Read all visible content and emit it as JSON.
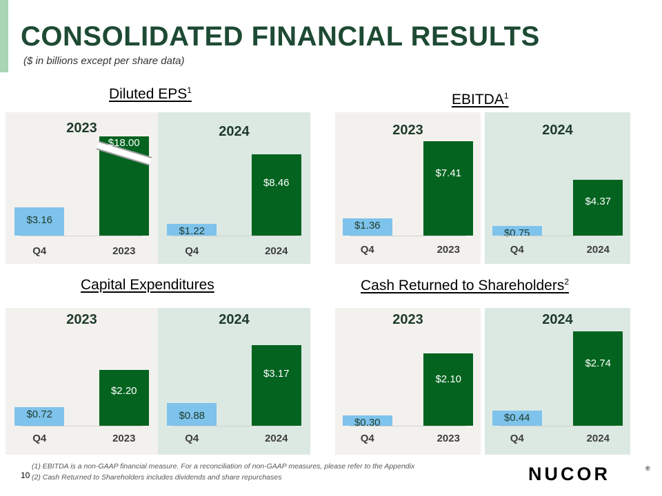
{
  "header": {
    "title": "CONSOLIDATED FINANCIAL RESULTS",
    "subtitle": "($ in billions except per share data)"
  },
  "colors": {
    "q4_bar": "#7ec3ec",
    "annual_bar": "#03631f",
    "panel_2023": "#f3f1ee",
    "panel_2024": "#dce9e2"
  },
  "chart_data": [
    {
      "type": "bar",
      "title": "Diluted EPS",
      "footnote_ref": "1",
      "series_groups": [
        {
          "group": "2023",
          "categories": [
            "Q4",
            "2023"
          ],
          "values": [
            3.16,
            18.0
          ],
          "labels": [
            "$3.16",
            "$18.00"
          ],
          "axis_break": true
        },
        {
          "group": "2024",
          "categories": [
            "Q4",
            "2024"
          ],
          "values": [
            1.22,
            8.46
          ],
          "labels": [
            "$1.22",
            "$8.46"
          ]
        }
      ]
    },
    {
      "type": "bar",
      "title": "EBITDA",
      "footnote_ref": "1",
      "series_groups": [
        {
          "group": "2023",
          "categories": [
            "Q4",
            "2023"
          ],
          "values": [
            1.36,
            7.41
          ],
          "labels": [
            "$1.36",
            "$7.41"
          ]
        },
        {
          "group": "2024",
          "categories": [
            "Q4",
            "2024"
          ],
          "values": [
            0.75,
            4.37
          ],
          "labels": [
            "$0.75",
            "$4.37"
          ]
        }
      ]
    },
    {
      "type": "bar",
      "title": "Capital Expenditures",
      "footnote_ref": "",
      "series_groups": [
        {
          "group": "2023",
          "categories": [
            "Q4",
            "2023"
          ],
          "values": [
            0.72,
            2.2
          ],
          "labels": [
            "$0.72",
            "$2.20"
          ]
        },
        {
          "group": "2024",
          "categories": [
            "Q4",
            "2024"
          ],
          "values": [
            0.88,
            3.17
          ],
          "labels": [
            "$0.88",
            "$3.17"
          ]
        }
      ]
    },
    {
      "type": "bar",
      "title": "Cash Returned to Shareholders",
      "footnote_ref": "2",
      "series_groups": [
        {
          "group": "2023",
          "categories": [
            "Q4",
            "2023"
          ],
          "values": [
            0.3,
            2.1
          ],
          "labels": [
            "$0.30",
            "$2.10"
          ]
        },
        {
          "group": "2024",
          "categories": [
            "Q4",
            "2024"
          ],
          "values": [
            0.44,
            2.74
          ],
          "labels": [
            "$0.44",
            "$2.74"
          ]
        }
      ]
    }
  ],
  "footnotes": [
    "(1)    EBITDA is a non-GAAP financial measure. For a reconciliation of non-GAAP measures, please refer to the Appendix",
    "(2)    Cash Returned to Shareholders includes dividends and share repurchases"
  ],
  "page_number": "10",
  "logo": {
    "text": "NUCOR",
    "mark": "®"
  }
}
